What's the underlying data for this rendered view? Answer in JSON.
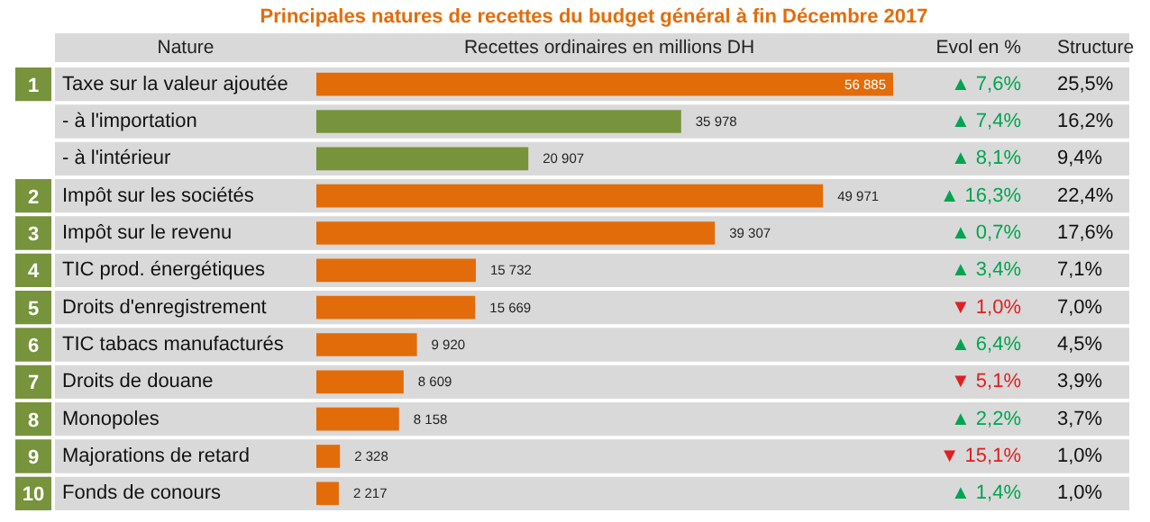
{
  "chart_data": {
    "type": "bar",
    "orientation": "horizontal",
    "title": "Principales natures de recettes du budget général à fin Décembre 2017",
    "ylabel": "Nature",
    "xlabel": "Recettes ordinaires en millions DH",
    "categories": [
      "Taxe sur la valeur ajoutée",
      "- à l'importation",
      "- à l'intérieur",
      "Impôt sur les sociétés",
      "Impôt sur le revenu",
      "TIC prod. énergétiques",
      "Droits d'enregistrement",
      "TIC tabacs manufacturés",
      "Droits de douane",
      "Monopoles",
      "Majorations de retard",
      "Fonds de conours"
    ],
    "values": [
      56885,
      35978,
      20907,
      49971,
      39307,
      15732,
      15669,
      9920,
      8609,
      8158,
      2328,
      2217
    ],
    "colors": [
      "#e36c0a",
      "#77933c",
      "#77933c",
      "#e36c0a",
      "#e36c0a",
      "#e36c0a",
      "#e36c0a",
      "#e36c0a",
      "#e36c0a",
      "#e36c0a",
      "#e36c0a",
      "#e36c0a"
    ],
    "value_labels": [
      "56 885",
      "35 978",
      "20 907",
      "49 971",
      "39 307",
      "15 732",
      "15 669",
      "9 920",
      "8 609",
      "8 158",
      "2 328",
      "2 217"
    ],
    "annotations": [
      "Evol en %",
      "Structure",
      "1",
      "2",
      "3",
      "4",
      "5",
      "6",
      "7",
      "8",
      "9",
      "10",
      "▲ 7,6%",
      "▲ 7,4%",
      "▲ 8,1%",
      "▲ 16,3%",
      "▲ 0,7%",
      "▲ 3,4%",
      "▼ 1,0%",
      "▲ 6,4%",
      "▼ 5,1%",
      "▲ 2,2%",
      "▼ 15,1%",
      "▲ 1,4%",
      "25,5%",
      "16,2%",
      "9,4%",
      "22,4%",
      "17,6%",
      "7,1%",
      "7,0%",
      "4,5%",
      "3,9%",
      "3,7%",
      "1,0%",
      "1,0%"
    ]
  }
}
